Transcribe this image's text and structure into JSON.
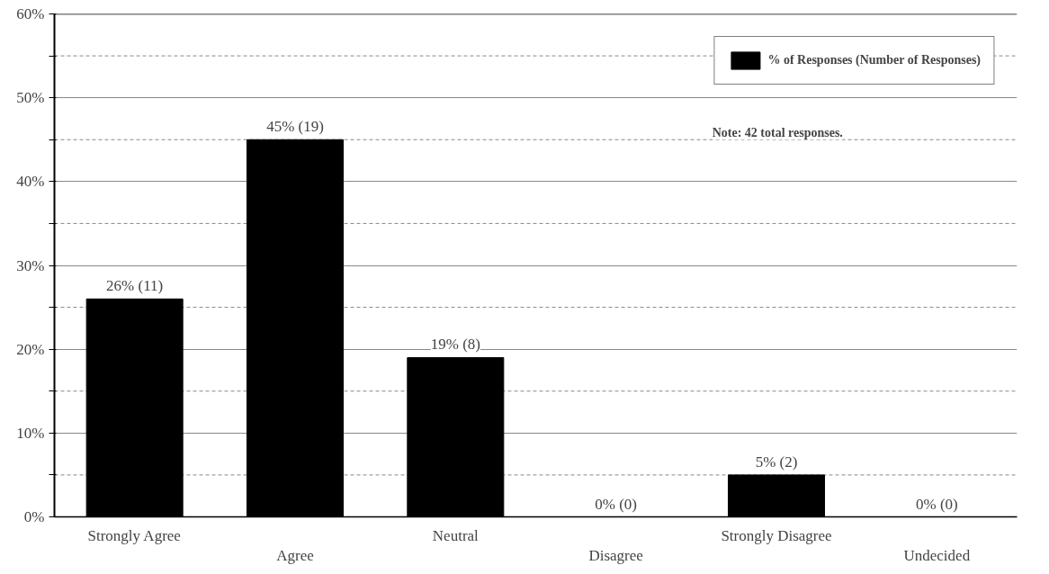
{
  "chart_data": {
    "type": "bar",
    "categories": [
      "Strongly Agree",
      "Agree",
      "Neutral",
      "Disagree",
      "Strongly Disagree",
      "Undecided"
    ],
    "series": [
      {
        "name": "% of Responses (Number of Responses)",
        "color": "#000000",
        "values": [
          26,
          45,
          19,
          0,
          5,
          0
        ],
        "value_labels": [
          "26% (11)",
          "45% (19)",
          "19% (8)",
          "0% (0)",
          "5% (2)",
          "0% (0)"
        ]
      }
    ],
    "ylim": [
      0,
      60
    ],
    "yticks": [
      {
        "value": 0,
        "label": "0%"
      },
      {
        "value": 5,
        "label": null
      },
      {
        "value": 10,
        "label": "10%"
      },
      {
        "value": 15,
        "label": null
      },
      {
        "value": 20,
        "label": "20%"
      },
      {
        "value": 25,
        "label": null
      },
      {
        "value": 30,
        "label": "30%"
      },
      {
        "value": 35,
        "label": null
      },
      {
        "value": 40,
        "label": "40%"
      },
      {
        "value": 45,
        "label": null
      },
      {
        "value": 50,
        "label": "50%"
      },
      {
        "value": 55,
        "label": null
      },
      {
        "value": 60,
        "label": "60%"
      }
    ],
    "grid": "y",
    "legend": "top right",
    "annotations": [
      "Note: 42 total responses."
    ]
  }
}
